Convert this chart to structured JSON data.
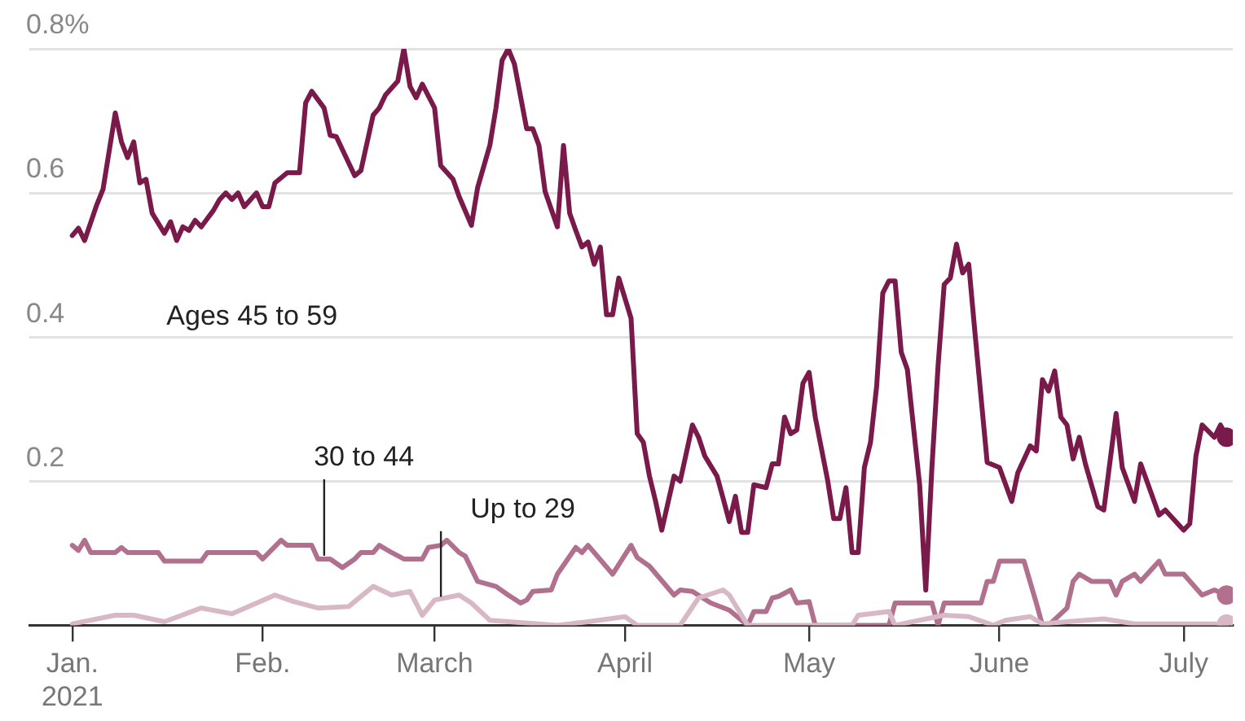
{
  "chart_data": {
    "type": "line",
    "xlim": [
      "2020-12-25",
      "2021-07-09"
    ],
    "ylim": [
      0,
      0.8
    ],
    "xticks": [
      {
        "value": "2021-01-01",
        "label": "Jan.\n2021"
      },
      {
        "value": "2021-02-01",
        "label": "Feb."
      },
      {
        "value": "2021-03-01",
        "label": "March"
      },
      {
        "value": "2021-04-01",
        "label": "April"
      },
      {
        "value": "2021-05-01",
        "label": "May"
      },
      {
        "value": "2021-06-01",
        "label": "June"
      },
      {
        "value": "2021-07-01",
        "label": "July"
      }
    ],
    "yticks": [
      {
        "value": 0,
        "label": null
      },
      0.2,
      0.4,
      0.6,
      {
        "value": 0.8,
        "label": "0.8%"
      }
    ],
    "grid": "y",
    "legend": false,
    "marker": "none",
    "line_style": "solid",
    "series": [
      {
        "name": "Ages 45 to 59",
        "color": "#7a1a4a",
        "x": [
          "2021-01-01",
          "2021-01-02",
          "2021-01-03",
          "2021-01-05",
          "2021-01-06",
          "2021-01-08",
          "2021-01-09",
          "2021-01-10",
          "2021-01-11",
          "2021-01-12",
          "2021-01-13",
          "2021-01-14",
          "2021-01-16",
          "2021-01-17",
          "2021-01-18",
          "2021-01-19",
          "2021-01-20",
          "2021-01-21",
          "2021-01-22",
          "2021-01-24",
          "2021-01-25",
          "2021-01-26",
          "2021-01-27",
          "2021-01-28",
          "2021-01-29",
          "2021-01-31",
          "2021-02-01",
          "2021-02-02",
          "2021-02-03",
          "2021-02-05",
          "2021-02-07",
          "2021-02-08",
          "2021-02-09",
          "2021-02-11",
          "2021-02-12",
          "2021-02-13",
          "2021-02-15",
          "2021-02-16",
          "2021-02-17",
          "2021-02-19",
          "2021-02-20",
          "2021-02-21",
          "2021-02-23",
          "2021-02-24",
          "2021-02-25",
          "2021-02-26",
          "2021-02-27",
          "2021-03-01",
          "2021-03-02",
          "2021-03-04",
          "2021-03-05",
          "2021-03-07",
          "2021-03-08",
          "2021-03-10",
          "2021-03-11",
          "2021-03-12",
          "2021-03-13",
          "2021-03-14",
          "2021-03-16",
          "2021-03-17",
          "2021-03-18",
          "2021-03-19",
          "2021-03-21",
          "2021-03-22",
          "2021-03-23",
          "2021-03-24",
          "2021-03-25",
          "2021-03-26",
          "2021-03-27",
          "2021-03-28",
          "2021-03-29",
          "2021-03-30",
          "2021-03-31",
          "2021-04-01",
          "2021-04-02",
          "2021-04-03",
          "2021-04-04",
          "2021-04-05",
          "2021-04-06",
          "2021-04-07",
          "2021-04-09",
          "2021-04-10",
          "2021-04-12",
          "2021-04-13",
          "2021-04-14",
          "2021-04-16",
          "2021-04-17",
          "2021-04-18",
          "2021-04-19",
          "2021-04-20",
          "2021-04-21",
          "2021-04-22",
          "2021-04-24",
          "2021-04-25",
          "2021-04-26",
          "2021-04-27",
          "2021-04-28",
          "2021-04-29",
          "2021-04-30",
          "2021-05-01",
          "2021-05-02",
          "2021-05-04",
          "2021-05-05",
          "2021-05-06",
          "2021-05-07",
          "2021-05-08",
          "2021-05-09",
          "2021-05-10",
          "2021-05-11",
          "2021-05-12",
          "2021-05-13",
          "2021-05-14",
          "2021-05-15",
          "2021-05-16",
          "2021-05-17",
          "2021-05-19",
          "2021-05-20",
          "2021-05-21",
          "2021-05-22",
          "2021-05-23",
          "2021-05-24",
          "2021-05-25",
          "2021-05-26",
          "2021-05-27",
          "2021-05-28",
          "2021-05-30",
          "2021-06-01",
          "2021-06-03",
          "2021-06-04",
          "2021-06-06",
          "2021-06-07",
          "2021-06-08",
          "2021-06-09",
          "2021-06-10",
          "2021-06-11",
          "2021-06-12",
          "2021-06-13",
          "2021-06-14",
          "2021-06-15",
          "2021-06-17",
          "2021-06-18",
          "2021-06-20",
          "2021-06-21",
          "2021-06-23",
          "2021-06-24",
          "2021-06-27",
          "2021-06-28",
          "2021-07-01",
          "2021-07-02",
          "2021-07-03",
          "2021-07-04",
          "2021-07-06",
          "2021-07-07",
          "2021-07-08"
        ],
        "values": [
          0.541,
          0.551,
          0.534,
          0.584,
          0.605,
          0.711,
          0.671,
          0.649,
          0.671,
          0.614,
          0.619,
          0.572,
          0.544,
          0.56,
          0.534,
          0.553,
          0.548,
          0.562,
          0.553,
          0.576,
          0.591,
          0.6,
          0.591,
          0.6,
          0.581,
          0.6,
          0.581,
          0.581,
          0.614,
          0.628,
          0.628,
          0.725,
          0.741,
          0.718,
          0.68,
          0.678,
          0.642,
          0.624,
          0.631,
          0.708,
          0.718,
          0.736,
          0.755,
          0.8,
          0.748,
          0.732,
          0.751,
          0.718,
          0.638,
          0.619,
          0.595,
          0.555,
          0.607,
          0.666,
          0.718,
          0.784,
          0.8,
          0.779,
          0.689,
          0.689,
          0.666,
          0.602,
          0.553,
          0.666,
          0.572,
          0.548,
          0.525,
          0.532,
          0.501,
          0.525,
          0.431,
          0.431,
          0.482,
          0.454,
          0.426,
          0.266,
          0.254,
          0.207,
          0.172,
          0.132,
          0.207,
          0.2,
          0.278,
          0.261,
          0.235,
          0.207,
          0.176,
          0.144,
          0.179,
          0.129,
          0.129,
          0.195,
          0.191,
          0.224,
          0.224,
          0.289,
          0.266,
          0.271,
          0.336,
          0.351,
          0.289,
          0.202,
          0.148,
          0.148,
          0.191,
          0.101,
          0.101,
          0.219,
          0.254,
          0.332,
          0.461,
          0.478,
          0.478,
          0.379,
          0.355,
          0.195,
          0.049,
          0.219,
          0.36,
          0.473,
          0.482,
          0.529,
          0.489,
          0.501,
          0.407,
          0.226,
          0.219,
          0.172,
          0.212,
          0.249,
          0.242,
          0.341,
          0.325,
          0.353,
          0.289,
          0.278,
          0.231,
          0.261,
          0.224,
          0.165,
          0.16,
          0.294,
          0.219,
          0.172,
          0.224,
          0.153,
          0.16,
          0.132,
          0.141,
          0.235,
          0.278,
          0.261,
          0.278,
          0.261
        ]
      },
      {
        "name": "30 to 44",
        "color": "#b0708e",
        "x": [
          "2021-01-01",
          "2021-01-02",
          "2021-01-03",
          "2021-01-04",
          "2021-01-08",
          "2021-01-09",
          "2021-01-10",
          "2021-01-15",
          "2021-01-16",
          "2021-01-22",
          "2021-01-23",
          "2021-01-31",
          "2021-02-01",
          "2021-02-04",
          "2021-02-05",
          "2021-02-09",
          "2021-02-10",
          "2021-02-12",
          "2021-02-14",
          "2021-02-16",
          "2021-02-17",
          "2021-02-19",
          "2021-02-20",
          "2021-02-22",
          "2021-02-24",
          "2021-02-27",
          "2021-02-28",
          "2021-03-02",
          "2021-03-03",
          "2021-03-05",
          "2021-03-06",
          "2021-03-08",
          "2021-03-11",
          "2021-03-13",
          "2021-03-15",
          "2021-03-16",
          "2021-03-17",
          "2021-03-20",
          "2021-03-21",
          "2021-03-24",
          "2021-03-25",
          "2021-03-26",
          "2021-03-30",
          "2021-04-02",
          "2021-04-03",
          "2021-04-05",
          "2021-04-09",
          "2021-04-10",
          "2021-04-12",
          "2021-04-15",
          "2021-04-18",
          "2021-04-21",
          "2021-04-22",
          "2021-04-24",
          "2021-04-25",
          "2021-04-26",
          "2021-04-28",
          "2021-04-29",
          "2021-05-01",
          "2021-05-02",
          "2021-05-14",
          "2021-05-15",
          "2021-05-21",
          "2021-05-22",
          "2021-05-23",
          "2021-05-29",
          "2021-05-30",
          "2021-05-31",
          "2021-06-01",
          "2021-06-05",
          "2021-06-07",
          "2021-06-08",
          "2021-06-09",
          "2021-06-12",
          "2021-06-13",
          "2021-06-14",
          "2021-06-16",
          "2021-06-19",
          "2021-06-20",
          "2021-06-21",
          "2021-06-23",
          "2021-06-24",
          "2021-06-27",
          "2021-06-28",
          "2021-07-01",
          "2021-07-04",
          "2021-07-06",
          "2021-07-08"
        ],
        "values": [
          0.111,
          0.104,
          0.118,
          0.101,
          0.101,
          0.108,
          0.101,
          0.101,
          0.089,
          0.089,
          0.101,
          0.101,
          0.092,
          0.118,
          0.111,
          0.111,
          0.092,
          0.092,
          0.08,
          0.092,
          0.101,
          0.101,
          0.111,
          0.101,
          0.092,
          0.092,
          0.108,
          0.111,
          0.118,
          0.101,
          0.096,
          0.061,
          0.054,
          0.042,
          0.031,
          0.035,
          0.047,
          0.049,
          0.071,
          0.108,
          0.101,
          0.111,
          0.071,
          0.111,
          0.094,
          0.082,
          0.042,
          0.049,
          0.047,
          0.031,
          0.021,
          0,
          0.019,
          0.019,
          0.038,
          0.04,
          0.049,
          0.031,
          0.033,
          0,
          0,
          0.031,
          0.031,
          0,
          0.031,
          0.031,
          0.061,
          0.061,
          0.089,
          0.089,
          0.031,
          0,
          0,
          0.024,
          0.061,
          0.071,
          0.061,
          0.061,
          0.042,
          0.061,
          0.071,
          0.061,
          0.089,
          0.071,
          0.071,
          0.042,
          0.049,
          0.042
        ]
      },
      {
        "name": "Up to 29",
        "color": "#d9b8c6",
        "x": [
          "2021-01-01",
          "2021-01-08",
          "2021-01-11",
          "2021-01-16",
          "2021-01-22",
          "2021-01-27",
          "2021-02-03",
          "2021-02-06",
          "2021-02-10",
          "2021-02-15",
          "2021-02-19",
          "2021-02-22",
          "2021-02-25",
          "2021-02-27",
          "2021-03-01",
          "2021-03-05",
          "2021-03-07",
          "2021-03-10",
          "2021-03-21",
          "2021-03-26",
          "2021-04-01",
          "2021-04-03",
          "2021-04-10",
          "2021-04-13",
          "2021-04-17",
          "2021-04-18",
          "2021-04-21",
          "2021-05-08",
          "2021-05-09",
          "2021-05-14",
          "2021-05-15",
          "2021-05-23",
          "2021-05-27",
          "2021-05-31",
          "2021-06-02",
          "2021-06-06",
          "2021-06-08",
          "2021-06-12",
          "2021-06-18",
          "2021-06-23",
          "2021-07-08"
        ],
        "values": [
          0.002,
          0.014,
          0.014,
          0.005,
          0.024,
          0.016,
          0.042,
          0.033,
          0.024,
          0.026,
          0.054,
          0.042,
          0.047,
          0.014,
          0.035,
          0.042,
          0.031,
          0.007,
          0,
          0.005,
          0.012,
          0,
          0,
          0.038,
          0.049,
          0.042,
          0,
          0,
          0.014,
          0.019,
          0,
          0.014,
          0.012,
          0,
          0.007,
          0.012,
          0.002,
          0.005,
          0.009,
          0.002,
          0.002
        ]
      }
    ]
  }
}
